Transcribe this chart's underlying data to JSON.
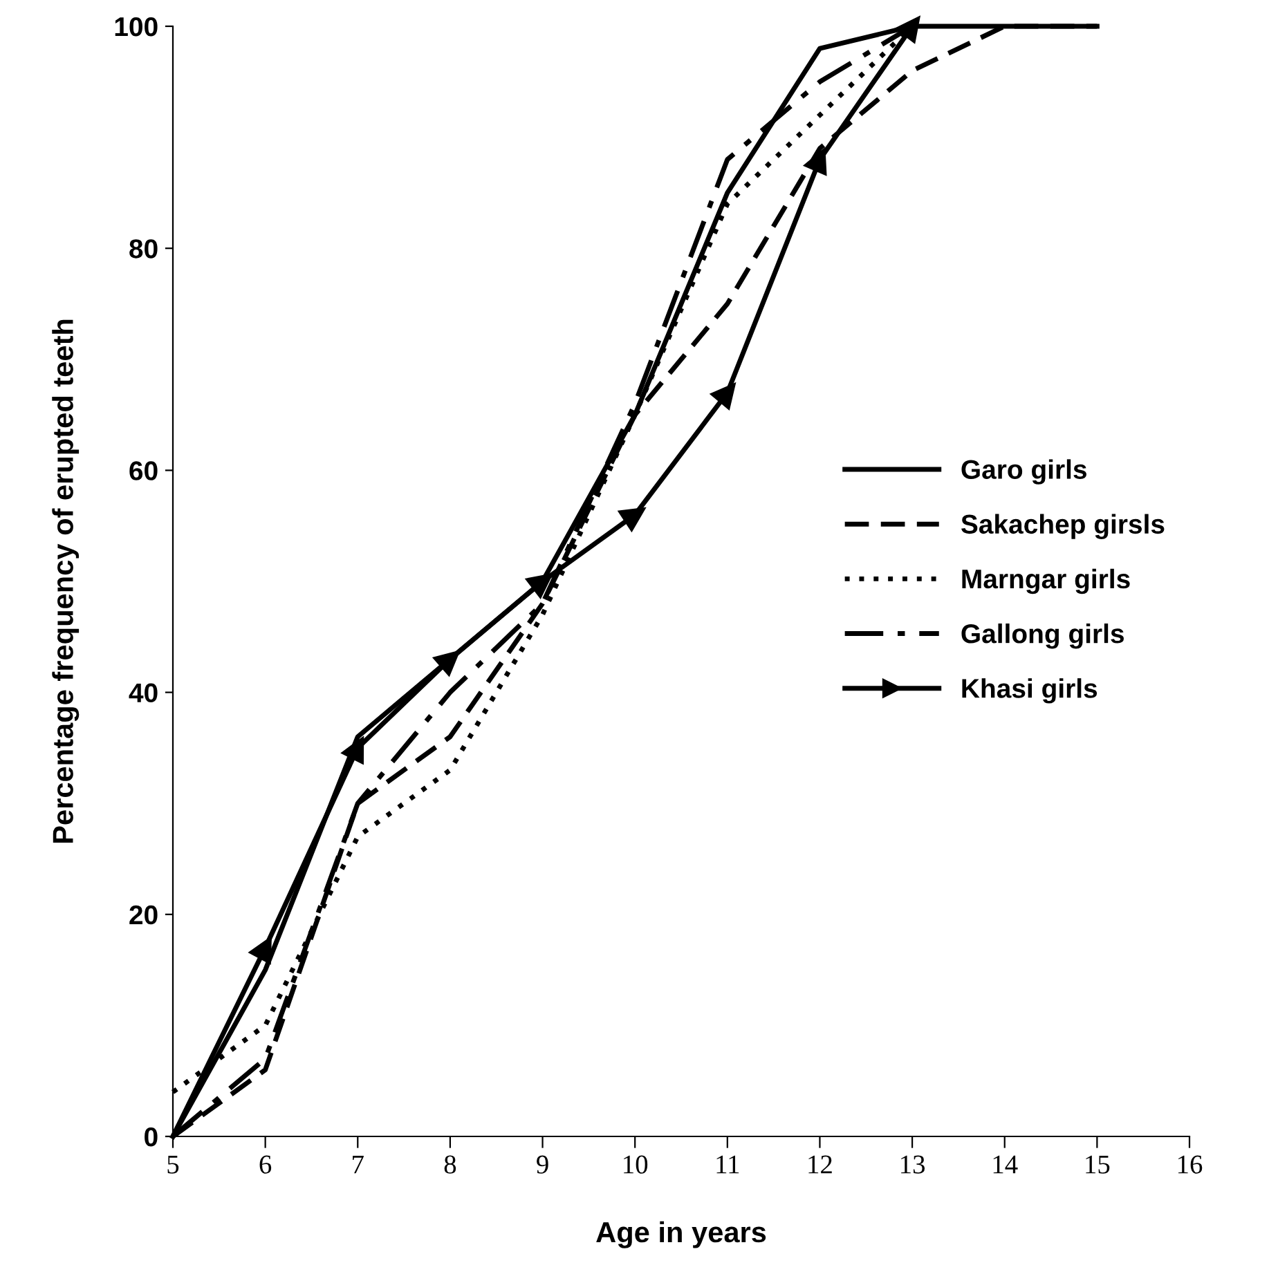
{
  "chart_data": {
    "type": "line",
    "xlabel": "Age in years",
    "ylabel": "Percentage frequency of erupted teeth",
    "x": [
      5,
      6,
      7,
      8,
      9,
      10,
      11,
      12,
      13,
      14,
      15
    ],
    "series": [
      {
        "name": "Garo girls",
        "color": "#000000",
        "line_style": "solid",
        "marker": "none",
        "values": [
          0,
          15,
          36,
          43,
          50,
          65,
          85,
          98,
          100,
          100,
          100
        ]
      },
      {
        "name": "Sakachep girsls",
        "color": "#000000",
        "line_style": "dashed",
        "marker": "none",
        "values": [
          0,
          6,
          30,
          36,
          48,
          65,
          75,
          89,
          96,
          100,
          100
        ]
      },
      {
        "name": "Marngar girls",
        "color": "#000000",
        "line_style": "dotted",
        "marker": "none",
        "values": [
          4,
          10,
          27,
          33,
          47,
          65,
          84,
          92,
          100,
          null,
          null
        ]
      },
      {
        "name": "Gallong girls",
        "color": "#000000",
        "line_style": "dashdot",
        "marker": "none",
        "values": [
          0,
          7,
          30,
          40,
          48,
          66,
          88,
          95,
          100,
          null,
          null
        ]
      },
      {
        "name": "Khasi girls",
        "color": "#000000",
        "line_style": "solid",
        "marker": "triangle",
        "values": [
          0,
          17,
          35,
          43,
          50,
          56,
          67,
          88,
          100,
          null,
          null
        ]
      }
    ],
    "xlim": [
      5,
      16
    ],
    "xticks": [
      5,
      6,
      7,
      8,
      9,
      10,
      11,
      12,
      13,
      14,
      15,
      16
    ],
    "ylim": [
      0,
      100
    ],
    "yticks": [
      0,
      20,
      40,
      60,
      80,
      100
    ],
    "grid": false,
    "legend": "right"
  }
}
